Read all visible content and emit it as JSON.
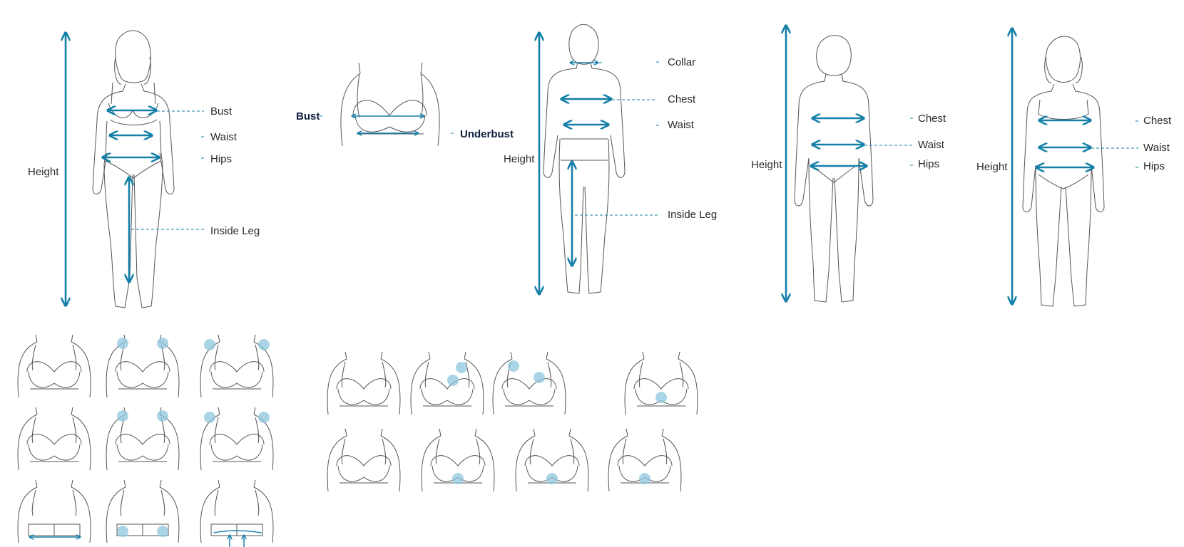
{
  "colors": {
    "accent": "#147fa8",
    "outline": "#555555",
    "highlight": "#8ec7dd"
  },
  "figures": {
    "women": {
      "height": "Height",
      "bust": "Bust",
      "waist": "Waist",
      "hips": "Hips",
      "inside_leg": "Inside Leg"
    },
    "lingerie": {
      "bust": "Bust",
      "underbust": "Underbust"
    },
    "men": {
      "height": "Height",
      "collar": "Collar",
      "chest": "Chest",
      "waist": "Waist",
      "inside_leg": "Inside Leg"
    },
    "boys": {
      "height": "Height",
      "chest": "Chest",
      "waist": "Waist",
      "hips": "Hips"
    },
    "girls": {
      "height": "Height",
      "chest": "Chest",
      "waist": "Waist",
      "hips": "Hips"
    }
  },
  "bra_fit_guides": {
    "left_grid_count": 9,
    "right_grid_count": 8,
    "icons": [
      "bra-fit-icon",
      "bra-strap-point-icon",
      "bra-strap-edge-icon",
      "bra-fit-icon",
      "bra-strap-point-icon",
      "bra-strap-edge-icon",
      "bra-back-band-icon",
      "bra-back-hook-icon",
      "bra-band-lift-icon",
      "bra-side-view-icon",
      "bra-side-cup-icon",
      "bra-side-gap-icon",
      "bra-centre-gore-icon",
      "bra-front-icon",
      "bra-underwire-icon",
      "bra-gore-icon",
      "bra-gore-lift-icon"
    ]
  }
}
